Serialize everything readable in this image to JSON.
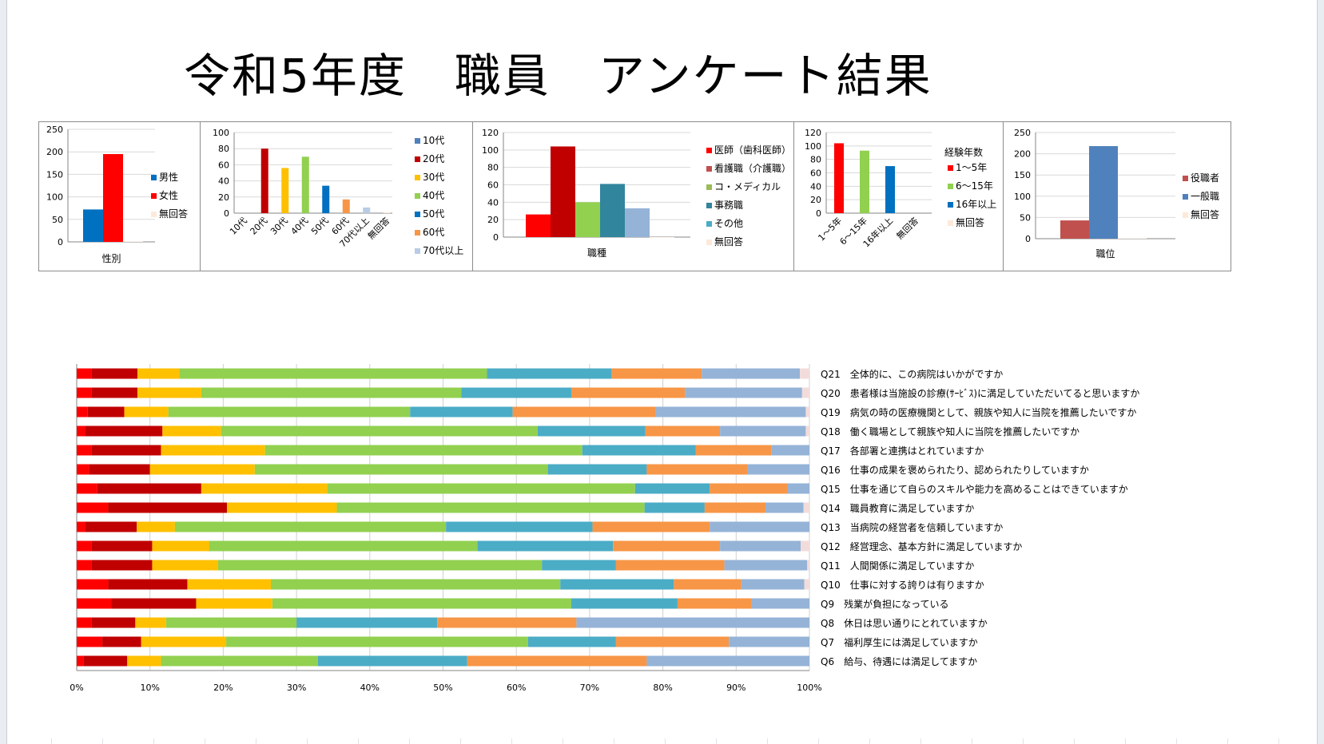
{
  "title": "令和5年度　職員　アンケート結果",
  "colors": {
    "red_bright": "#FF0000",
    "red_dark": "#C00000",
    "yellow": "#FFC000",
    "green": "#92D050",
    "teal": "#4BACC6",
    "orange": "#F79646",
    "lavender": "#95B3D7",
    "pink": "#F2DCDB",
    "blue": "#0070C0",
    "blue_light": "#4F81BD",
    "rose": "#C0504D",
    "olive": "#9BBB59",
    "teal_dark": "#31859C",
    "steel": "#4BACC6",
    "pale_blue": "#B8CCE4",
    "steel_blue": "#4F81BD",
    "pale_peach": "#FDE9D9"
  },
  "chart_data": [
    {
      "id": "gender",
      "type": "bar",
      "xlabel": "性別",
      "ylim": [
        0,
        250
      ],
      "yticks": [
        0,
        50,
        100,
        150,
        200,
        250
      ],
      "series": [
        {
          "name": "男性",
          "values": [
            72
          ],
          "color": "#0070C0"
        },
        {
          "name": "女性",
          "values": [
            195
          ],
          "color": "#FF0000"
        },
        {
          "name": "無回答",
          "values": [
            1
          ],
          "color": "#FDE9D9"
        }
      ],
      "legend": "right"
    },
    {
      "id": "age",
      "type": "bar",
      "ylim": [
        0,
        100
      ],
      "yticks": [
        0,
        20,
        40,
        60,
        80,
        100
      ],
      "categories": [
        "10代",
        "20代",
        "30代",
        "40代",
        "50代",
        "60代",
        "70代以上",
        "無回答"
      ],
      "values": [
        0,
        80,
        56,
        70,
        34,
        17,
        7,
        1
      ],
      "colors": [
        "#4F81BD",
        "#C00000",
        "#FFC000",
        "#92D050",
        "#0070C0",
        "#F79646",
        "#B8CCE4",
        "#FDE9D9"
      ],
      "legend_items": [
        "10代",
        "20代",
        "30代",
        "40代",
        "50代",
        "60代",
        "70代以上"
      ],
      "legend": "right"
    },
    {
      "id": "job",
      "type": "bar",
      "xlabel": "職種",
      "ylim": [
        0,
        120
      ],
      "yticks": [
        0,
        20,
        40,
        60,
        80,
        100,
        120
      ],
      "series": [
        {
          "name": "医師（歯科医師）",
          "values": [
            26
          ],
          "color": "#FF0000"
        },
        {
          "name": "看護職（介護職）",
          "values": [
            104
          ],
          "color": "#C00000"
        },
        {
          "name": "コ・メディカル",
          "values": [
            40
          ],
          "color": "#92D050"
        },
        {
          "name": "事務職",
          "values": [
            61
          ],
          "color": "#31859C"
        },
        {
          "name": "その他",
          "values": [
            33
          ],
          "color": "#95B3D7"
        },
        {
          "name": "無回答",
          "values": [
            0
          ],
          "color": "#FDE9D9"
        }
      ],
      "legend_colors": [
        "#FF0000",
        "#C0504D",
        "#9BBB59",
        "#31859C",
        "#4BACC6",
        "#FDE9D9"
      ],
      "legend": "right"
    },
    {
      "id": "experience",
      "type": "bar",
      "ylim": [
        0,
        120
      ],
      "yticks": [
        0,
        20,
        40,
        60,
        80,
        100,
        120
      ],
      "legend_title": "経験年数",
      "categories": [
        "1～5年",
        "6～15年",
        "16年以上",
        "無回答"
      ],
      "values": [
        104,
        93,
        70,
        0
      ],
      "colors": [
        "#FF0000",
        "#92D050",
        "#0070C0",
        "#FDE9D9"
      ],
      "legend_items": [
        "1～5年",
        "6～15年",
        "16年以上",
        "無回答"
      ],
      "legend": "right"
    },
    {
      "id": "position",
      "type": "bar",
      "xlabel": "職位",
      "ylim": [
        0,
        250
      ],
      "yticks": [
        0,
        50,
        100,
        150,
        200,
        250
      ],
      "series": [
        {
          "name": "役職者",
          "values": [
            43
          ],
          "color": "#C0504D"
        },
        {
          "name": "一般職",
          "values": [
            218
          ],
          "color": "#4F81BD"
        },
        {
          "name": "無回答",
          "values": [
            1
          ],
          "color": "#FDE9D9"
        }
      ],
      "legend": "right"
    },
    {
      "id": "survey",
      "type": "bar",
      "orientation": "horizontal",
      "stacked": "percent",
      "xlim": [
        0,
        100
      ],
      "xticks": [
        "0%",
        "10%",
        "20%",
        "30%",
        "40%",
        "50%",
        "60%",
        "70%",
        "80%",
        "90%",
        "100%"
      ],
      "segment_colors": [
        "#FF0000",
        "#C00000",
        "#FFC000",
        "#92D050",
        "#4BACC6",
        "#F79646",
        "#95B3D7",
        "#F2DCDB"
      ],
      "rows": [
        {
          "label": "Q21　全体的に、この病院はいかがですか",
          "values": [
            2,
            6.3,
            5.7,
            42,
            17,
            12.3,
            13.4,
            1.3
          ]
        },
        {
          "label": "Q20　患者様は当施設の診療(ｻｰﾋﾞｽ)に満足していただいてると思いますか",
          "values": [
            2,
            6.3,
            8.7,
            35.5,
            15,
            15.5,
            16,
            1
          ]
        },
        {
          "label": "Q19　病気の時の医療機関として、親族や知人に当院を推薦したいですか",
          "values": [
            1.5,
            5,
            6,
            33,
            14,
            19.5,
            20.5,
            0.5
          ]
        },
        {
          "label": "Q18　働く職場として親族や知人に当院を推薦したいですか",
          "values": [
            1.2,
            10.5,
            8,
            43.2,
            14.7,
            10.2,
            11.7,
            0.5
          ]
        },
        {
          "label": "Q17　各部署と連携はとれていますか",
          "values": [
            2,
            9.5,
            14.2,
            43.3,
            15.5,
            10.3,
            5.2,
            0
          ]
        },
        {
          "label": "Q16　仕事の成果を褒められたり、認められたりしていますか",
          "values": [
            1.7,
            8.3,
            14.3,
            40,
            13.5,
            13.7,
            8.5,
            0
          ]
        },
        {
          "label": "Q15　仕事を通じて自らのスキルや能力を高めることはできていますか",
          "values": [
            2.8,
            14.2,
            17.2,
            42,
            10.2,
            10.6,
            3,
            0
          ]
        },
        {
          "label": "Q14　職員教育に満足していますか",
          "values": [
            4.3,
            16.2,
            15,
            42,
            8.2,
            8.3,
            5.2,
            0.8
          ]
        },
        {
          "label": "Q13　当病院の経営者を信頼していますか",
          "values": [
            1.2,
            7,
            5.2,
            37,
            20,
            16,
            13.6,
            0
          ]
        },
        {
          "label": "Q12　経営理念、基本方針に満足していますか",
          "values": [
            2,
            8.3,
            7.8,
            36.6,
            18.5,
            14.6,
            11,
            1.2
          ]
        },
        {
          "label": "Q11　人間関係に満足していますか",
          "values": [
            2,
            8.3,
            9,
            44.2,
            10.1,
            14.8,
            11.3,
            0.3
          ]
        },
        {
          "label": "Q10　仕事に対する誇りは有りますか",
          "values": [
            4.3,
            10.8,
            11.4,
            39.5,
            15.5,
            9.2,
            8.6,
            0.7
          ]
        },
        {
          "label": "Q9　残業が負担になっている",
          "values": [
            4.7,
            11.6,
            10.4,
            40.8,
            14.5,
            10.1,
            7.9,
            0
          ]
        },
        {
          "label": "Q8　休日は思い通りにとれていますか",
          "values": [
            2,
            6,
            4.2,
            17.8,
            19.2,
            19,
            31.8,
            0
          ]
        },
        {
          "label": "Q7　福利厚生には満足していますか",
          "values": [
            3.5,
            5.3,
            11.6,
            41.2,
            12,
            15.4,
            11,
            0
          ]
        },
        {
          "label": "Q6　給与、待遇には満足してますか",
          "values": [
            0.9,
            6,
            4.6,
            21.4,
            20.4,
            24.5,
            22.2,
            0
          ]
        }
      ]
    }
  ]
}
